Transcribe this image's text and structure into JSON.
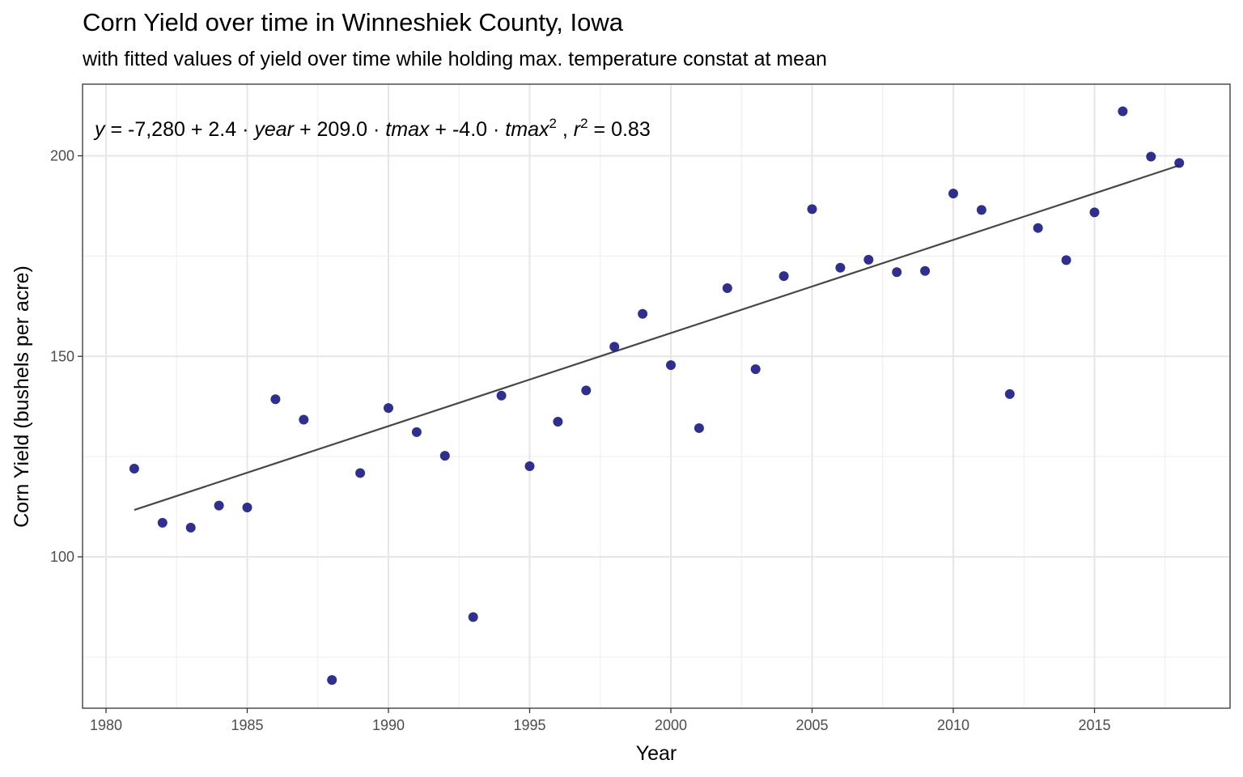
{
  "chart_data": {
    "type": "scatter",
    "title": "Corn Yield over time in Winneshiek County, Iowa",
    "subtitle": "with fitted values of yield over time while holding max. temperature constat at mean",
    "xlabel": "Year",
    "ylabel": "Corn Yield (bushels per acre)",
    "xlim": [
      1980,
      2019
    ],
    "ylim": [
      75,
      215
    ],
    "x_ticks": [
      1980,
      1985,
      1990,
      1995,
      2000,
      2005,
      2010,
      2015
    ],
    "y_ticks": [
      100,
      150,
      200
    ],
    "grid": true,
    "point_color": "#1a1a80",
    "fit_line_color": "#474747",
    "annotation": {
      "y": "y",
      "eq": " = ",
      "intercept": "-7,280",
      "plus1": " + ",
      "coef_year": "2.4",
      "dot1": " · ",
      "year": "year",
      "plus2": " + ",
      "coef_tmax": "209.0",
      "dot2": " ·  ",
      "tmax": "tmax",
      "plus3": " + ",
      "coef_tmax2": "-4.0",
      "dot3": " ·  ",
      "tmax2": "tmax",
      "sup2": "2",
      "comma": " ,  ",
      "r": "r",
      "sup_r": "2",
      "r2_value": " = 0.83"
    },
    "series": [
      {
        "x": [
          1981,
          1982,
          1983,
          1984,
          1985,
          1986,
          1987,
          1988,
          1989,
          1990,
          1991,
          1992,
          1993,
          1994,
          1995,
          1996,
          1997,
          1998,
          1999,
          2000,
          2001,
          2002,
          2003,
          2004,
          2005,
          2006,
          2007,
          2008,
          2009,
          2010,
          2011,
          2012,
          2013,
          2014,
          2015,
          2016,
          2017,
          2018
        ],
        "y": [
          122,
          108.5,
          107.3,
          112.8,
          112.3,
          139.3,
          134.2,
          69.3,
          120.9,
          137.1,
          131.1,
          125.2,
          85,
          140.2,
          122.6,
          133.7,
          141.5,
          152.4,
          160.6,
          147.8,
          132.1,
          167,
          146.8,
          170,
          186.7,
          172.1,
          174.1,
          171,
          171.3,
          190.6,
          186.5,
          140.6,
          182,
          174,
          185.9,
          211.1,
          199.8,
          198.2
        ]
      }
    ],
    "fit_line": {
      "x": [
        1981,
        2018
      ],
      "y": [
        111.7,
        197.6
      ]
    }
  }
}
